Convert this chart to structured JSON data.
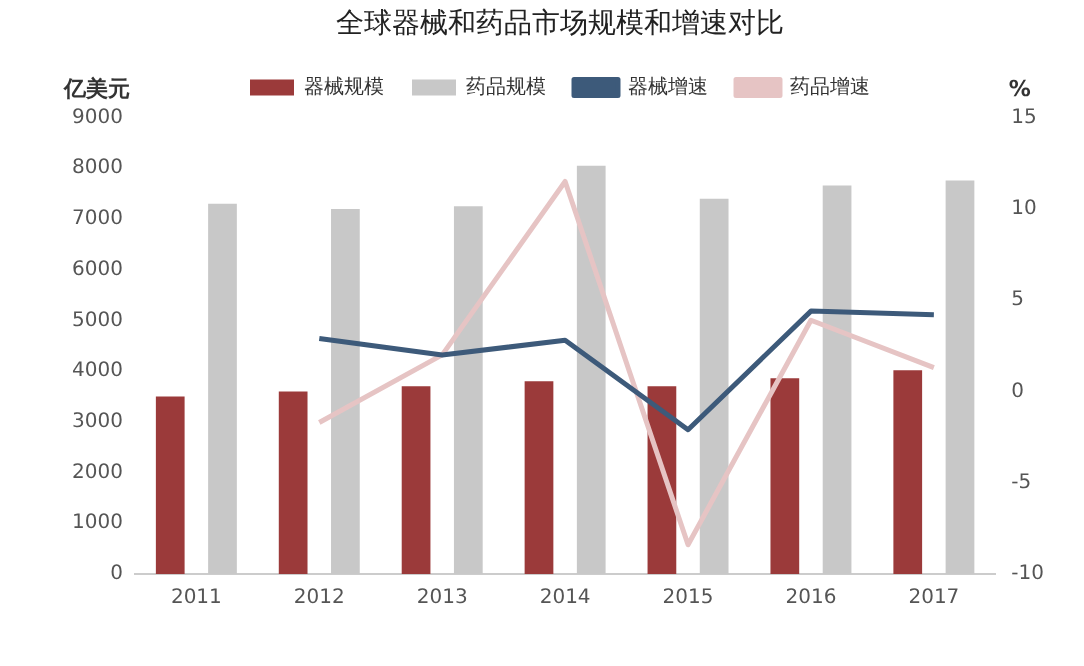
{
  "chart_data": {
    "type": "bar",
    "title": "全球器械和药品市场规模和增速对比",
    "ylabel": "亿美元",
    "y2label": "%",
    "categories": [
      "2011",
      "2012",
      "2013",
      "2014",
      "2015",
      "2016",
      "2017"
    ],
    "series": [
      {
        "name": "器械规模",
        "color": "#9b3a3a",
        "values": [
          3500,
          3600,
          3700,
          3800,
          3700,
          3860,
          4020
        ]
      },
      {
        "name": "药品规模",
        "color": "#c8c8c8",
        "values": [
          7300,
          7200,
          7250,
          8050,
          7400,
          7660,
          7760
        ]
      },
      {
        "name": "器械增速",
        "type": "line",
        "axis": "y2",
        "color": "#3d5a7a",
        "values": [
          null,
          2.9,
          2.0,
          2.8,
          -2.1,
          4.4,
          4.2
        ]
      },
      {
        "name": "药品增速",
        "type": "line",
        "axis": "y2",
        "color": "#e6c4c4",
        "values": [
          null,
          -1.7,
          2.0,
          11.5,
          -8.4,
          3.9,
          1.3
        ]
      }
    ],
    "ylim": [
      0,
      9000
    ],
    "yticks": [
      0,
      1000,
      2000,
      3000,
      4000,
      5000,
      6000,
      7000,
      8000,
      9000
    ],
    "y2lim": [
      -10,
      15
    ],
    "y2ticks": [
      -10,
      -5,
      0,
      5,
      10,
      15
    ],
    "legend": "top",
    "grid": false,
    "marker": "none"
  }
}
